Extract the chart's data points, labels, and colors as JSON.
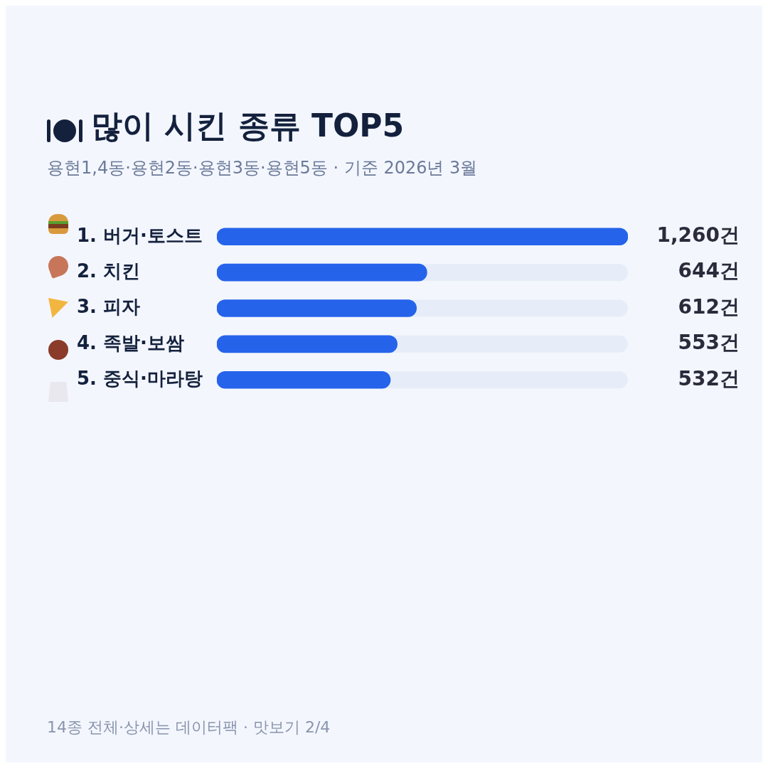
{
  "chart_data": {
    "type": "bar",
    "orientation": "horizontal",
    "title": "많이 시킨 종류 TOP5",
    "subtitle": "용현1,4동·용현2동·용현3동·용현5동 · 기준 2026년 3월",
    "categories": [
      "1. 버거·토스트",
      "2. 치킨",
      "3. 피자",
      "4. 족발·보쌈",
      "5. 중식·마라탕"
    ],
    "values": [
      1260,
      644,
      612,
      553,
      532
    ],
    "value_labels": [
      "1,260건",
      "644건",
      "612건",
      "553건",
      "532건"
    ],
    "color": "#2563eb",
    "annotations": [
      "14종 전체·상세는 데이터팩 · 맛보기 2/4"
    ]
  }
}
